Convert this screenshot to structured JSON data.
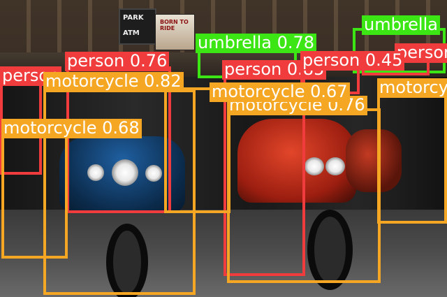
{
  "scene": {
    "street_sign": [
      "PARK",
      "ATM"
    ],
    "poster_text": "BORN TO RIDE"
  },
  "colors": {
    "person": "#F03C3C",
    "motorcycle": "#F5A623",
    "umbrella": "#3CE614"
  },
  "detections": [
    {
      "label": "person 0.76",
      "cls": "person"
    },
    {
      "label": "person",
      "cls": "person"
    },
    {
      "label": "umbrella 0.78",
      "cls": "umbrella"
    },
    {
      "label": "umbrella",
      "cls": "umbrella"
    },
    {
      "label": "person 0.85",
      "cls": "person"
    },
    {
      "label": "motorcycle 0.82",
      "cls": "motorcycle"
    },
    {
      "label": "motorcycle 0.76",
      "cls": "motorcycle"
    },
    {
      "label": "motorcycle 0.68",
      "cls": "motorcycle"
    },
    {
      "label": "motorcycle",
      "cls": "motorcycle"
    },
    {
      "label": "person",
      "cls": "person"
    },
    {
      "label": "person 0.45",
      "cls": "person"
    },
    {
      "label": "motorcycle 0.67",
      "cls": "motorcycle"
    }
  ]
}
